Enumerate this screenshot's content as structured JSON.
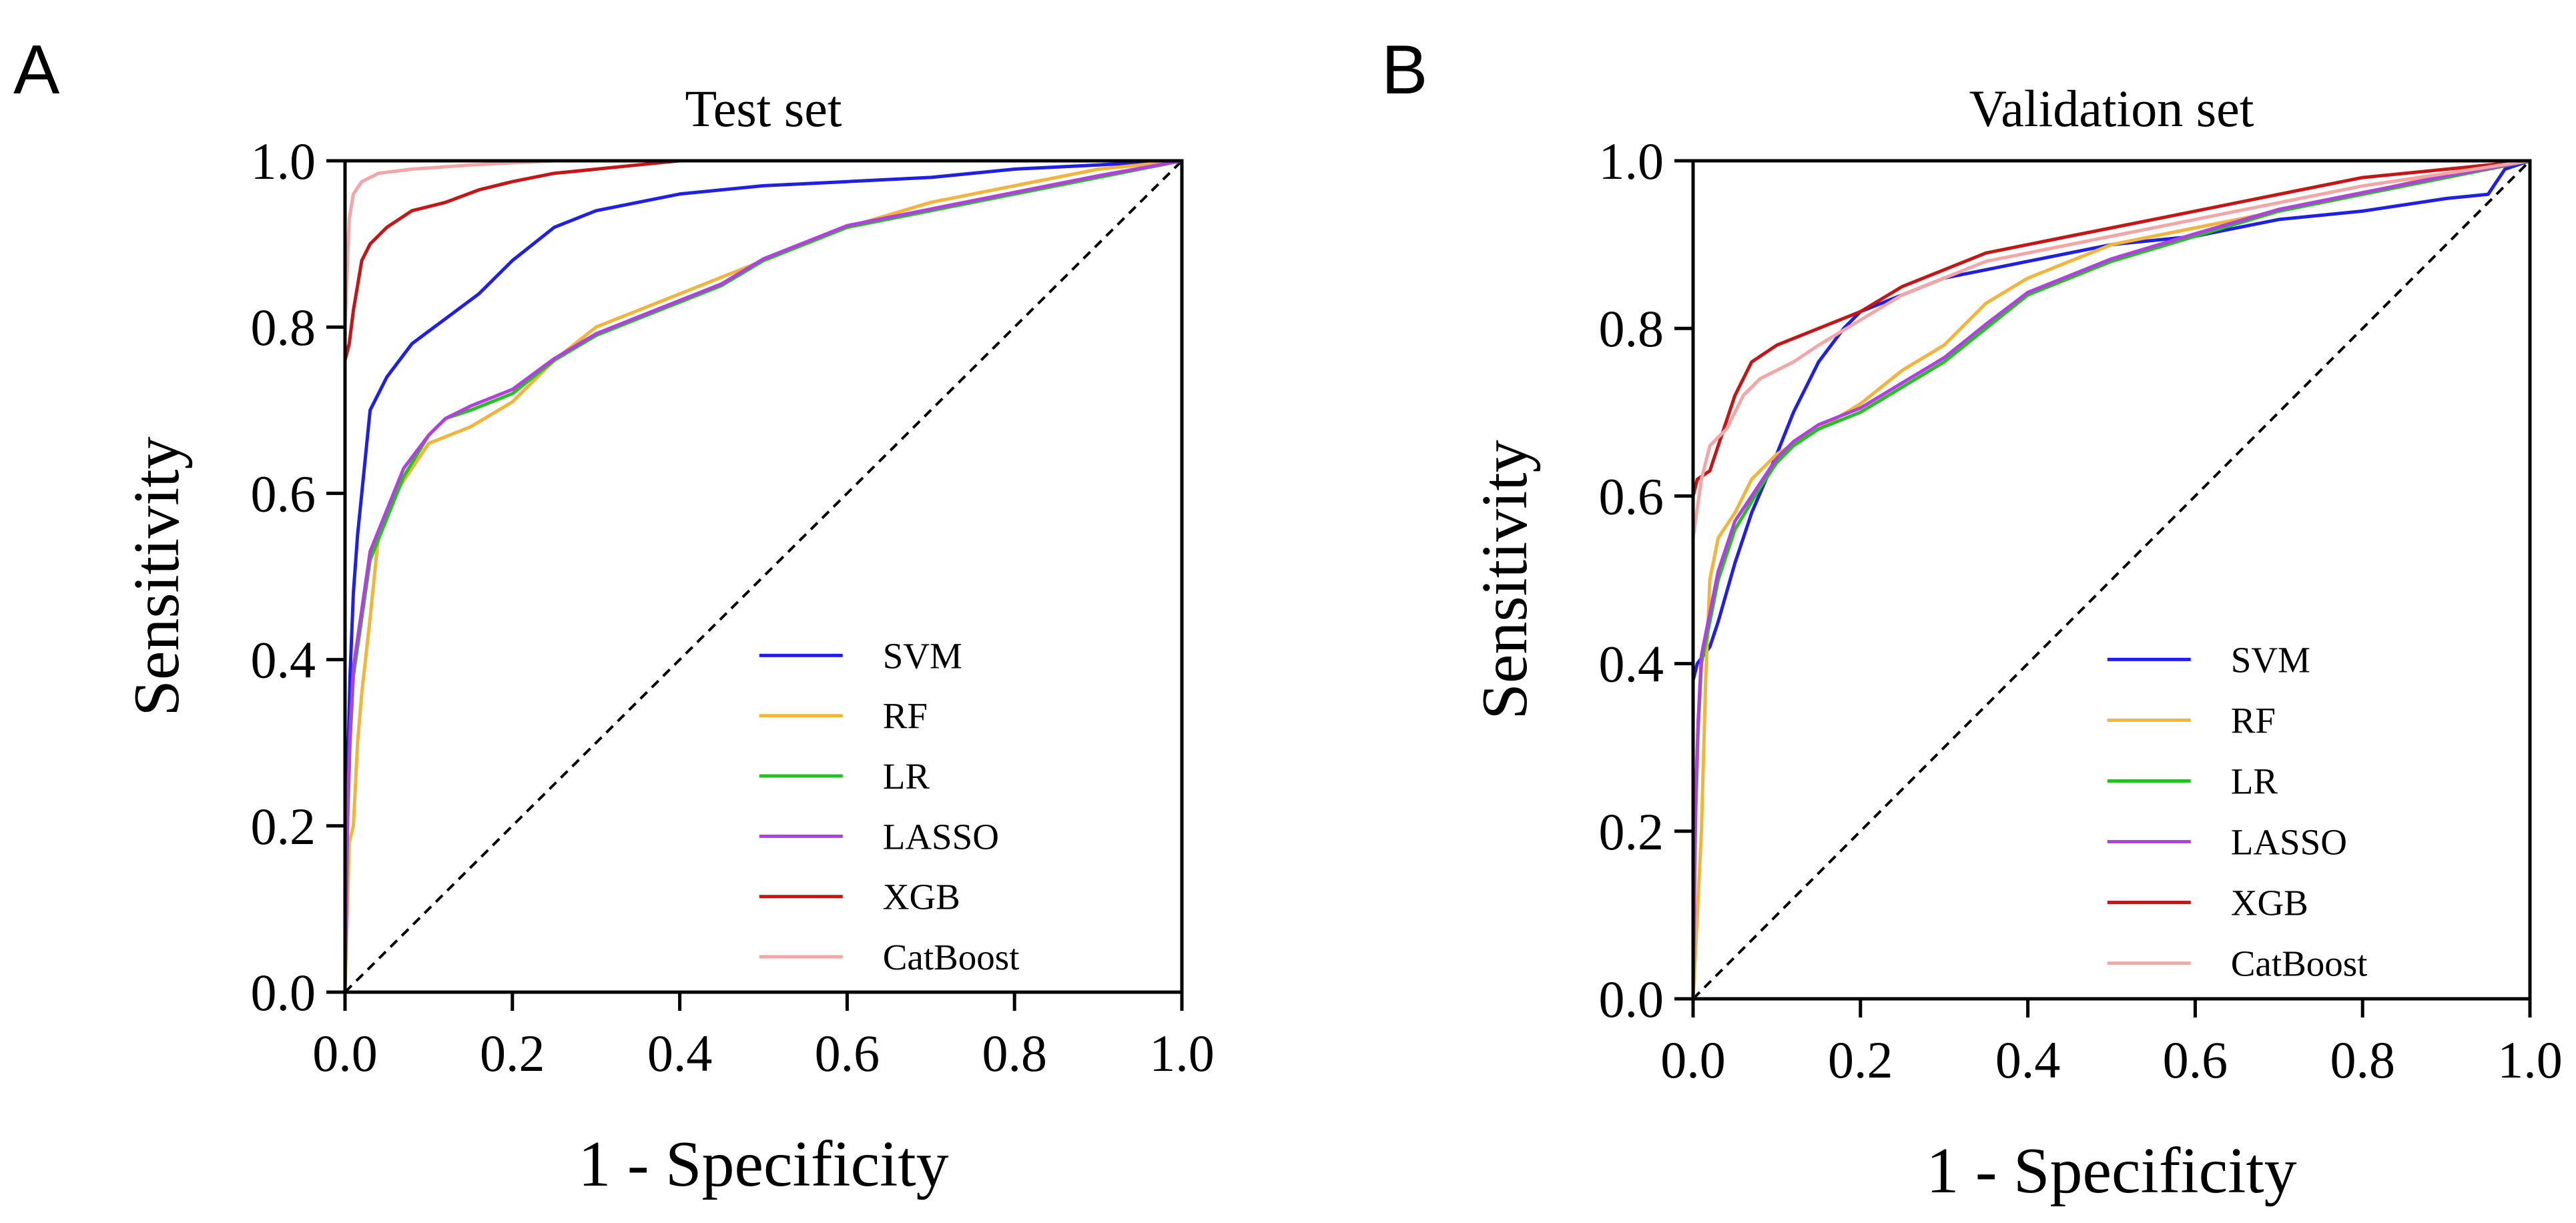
{
  "figure_labels": {
    "A": "A",
    "B": "B"
  },
  "colors": {
    "SVM": "#1f1fe8",
    "RF": "#f2b43a",
    "LR": "#22c022",
    "LASSO": "#b23fe0",
    "XGB": "#c61515",
    "CatBoost": "#f4a6a6",
    "diagonal": "#000000"
  },
  "chart_data": [
    {
      "type": "line",
      "panel": "A",
      "title": "Test set",
      "xlabel": "1 - Specificity",
      "ylabel": "Sensitivity",
      "xlim": [
        0,
        1
      ],
      "ylim": [
        0,
        1
      ],
      "x_ticks": [
        "0.0",
        "0.2",
        "0.4",
        "0.6",
        "0.8",
        "1.0"
      ],
      "y_ticks": [
        "0.0",
        "0.2",
        "0.4",
        "0.6",
        "0.8",
        "1.0"
      ],
      "legend": [
        "SVM",
        "RF",
        "LR",
        "LASSO",
        "XGB",
        "CatBoost"
      ],
      "legend_position": "bottom-right",
      "reference_line": [
        [
          0,
          0
        ],
        [
          1,
          1
        ]
      ],
      "series": [
        {
          "name": "SVM",
          "points": [
            [
              0,
              0
            ],
            [
              0,
              0.1
            ],
            [
              0.004,
              0.3
            ],
            [
              0.006,
              0.38
            ],
            [
              0.01,
              0.48
            ],
            [
              0.015,
              0.55
            ],
            [
              0.02,
              0.6
            ],
            [
              0.03,
              0.7
            ],
            [
              0.05,
              0.74
            ],
            [
              0.08,
              0.78
            ],
            [
              0.12,
              0.81
            ],
            [
              0.16,
              0.84
            ],
            [
              0.2,
              0.88
            ],
            [
              0.25,
              0.92
            ],
            [
              0.3,
              0.94
            ],
            [
              0.35,
              0.95
            ],
            [
              0.4,
              0.96
            ],
            [
              0.5,
              0.97
            ],
            [
              0.6,
              0.975
            ],
            [
              0.7,
              0.98
            ],
            [
              0.8,
              0.99
            ],
            [
              0.9,
              0.995
            ],
            [
              1,
              1
            ]
          ]
        },
        {
          "name": "RF",
          "points": [
            [
              0,
              0
            ],
            [
              0.005,
              0.18
            ],
            [
              0.01,
              0.2
            ],
            [
              0.015,
              0.3
            ],
            [
              0.02,
              0.36
            ],
            [
              0.03,
              0.45
            ],
            [
              0.04,
              0.55
            ],
            [
              0.06,
              0.6
            ],
            [
              0.08,
              0.63
            ],
            [
              0.1,
              0.66
            ],
            [
              0.15,
              0.68
            ],
            [
              0.2,
              0.71
            ],
            [
              0.25,
              0.76
            ],
            [
              0.3,
              0.8
            ],
            [
              0.35,
              0.82
            ],
            [
              0.4,
              0.84
            ],
            [
              0.45,
              0.86
            ],
            [
              0.5,
              0.88
            ],
            [
              0.55,
              0.9
            ],
            [
              0.6,
              0.92
            ],
            [
              0.7,
              0.95
            ],
            [
              0.8,
              0.97
            ],
            [
              0.9,
              0.99
            ],
            [
              1,
              1
            ]
          ]
        },
        {
          "name": "LR",
          "points": [
            [
              0,
              0
            ],
            [
              0.003,
              0.2
            ],
            [
              0.006,
              0.3
            ],
            [
              0.01,
              0.38
            ],
            [
              0.02,
              0.45
            ],
            [
              0.03,
              0.52
            ],
            [
              0.05,
              0.57
            ],
            [
              0.07,
              0.62
            ],
            [
              0.1,
              0.67
            ],
            [
              0.12,
              0.69
            ],
            [
              0.15,
              0.7
            ],
            [
              0.2,
              0.72
            ],
            [
              0.25,
              0.76
            ],
            [
              0.3,
              0.79
            ],
            [
              0.35,
              0.81
            ],
            [
              0.4,
              0.83
            ],
            [
              0.45,
              0.85
            ],
            [
              0.5,
              0.88
            ],
            [
              0.55,
              0.9
            ],
            [
              0.6,
              0.92
            ],
            [
              0.7,
              0.94
            ],
            [
              0.8,
              0.96
            ],
            [
              0.9,
              0.98
            ],
            [
              1,
              1
            ]
          ]
        },
        {
          "name": "LASSO",
          "points": [
            [
              0,
              0
            ],
            [
              0.003,
              0.22
            ],
            [
              0.006,
              0.31
            ],
            [
              0.01,
              0.39
            ],
            [
              0.02,
              0.46
            ],
            [
              0.03,
              0.53
            ],
            [
              0.05,
              0.58
            ],
            [
              0.07,
              0.63
            ],
            [
              0.1,
              0.67
            ],
            [
              0.12,
              0.69
            ],
            [
              0.15,
              0.705
            ],
            [
              0.2,
              0.725
            ],
            [
              0.25,
              0.762
            ],
            [
              0.3,
              0.792
            ],
            [
              0.35,
              0.812
            ],
            [
              0.4,
              0.832
            ],
            [
              0.45,
              0.852
            ],
            [
              0.5,
              0.882
            ],
            [
              0.55,
              0.902
            ],
            [
              0.6,
              0.922
            ],
            [
              0.7,
              0.942
            ],
            [
              0.8,
              0.962
            ],
            [
              0.9,
              0.982
            ],
            [
              1,
              1
            ]
          ]
        },
        {
          "name": "XGB",
          "points": [
            [
              0,
              0
            ],
            [
              0,
              0.76
            ],
            [
              0.005,
              0.78
            ],
            [
              0.01,
              0.82
            ],
            [
              0.02,
              0.88
            ],
            [
              0.03,
              0.9
            ],
            [
              0.05,
              0.92
            ],
            [
              0.08,
              0.94
            ],
            [
              0.12,
              0.95
            ],
            [
              0.16,
              0.965
            ],
            [
              0.2,
              0.975
            ],
            [
              0.25,
              0.985
            ],
            [
              0.3,
              0.99
            ],
            [
              0.35,
              0.995
            ],
            [
              0.4,
              1
            ],
            [
              1,
              1
            ]
          ]
        },
        {
          "name": "CatBoost",
          "points": [
            [
              0,
              0
            ],
            [
              0,
              0.8
            ],
            [
              0.003,
              0.88
            ],
            [
              0.005,
              0.93
            ],
            [
              0.01,
              0.96
            ],
            [
              0.02,
              0.975
            ],
            [
              0.04,
              0.985
            ],
            [
              0.08,
              0.99
            ],
            [
              0.15,
              0.995
            ],
            [
              0.25,
              1
            ],
            [
              1,
              1
            ]
          ]
        }
      ]
    },
    {
      "type": "line",
      "panel": "B",
      "title": "Validation set",
      "xlabel": "1 - Specificity",
      "ylabel": "Sensitivity",
      "xlim": [
        0,
        1
      ],
      "ylim": [
        0,
        1
      ],
      "x_ticks": [
        "0.0",
        "0.2",
        "0.4",
        "0.6",
        "0.8",
        "1.0"
      ],
      "y_ticks": [
        "0.0",
        "0.2",
        "0.4",
        "0.6",
        "0.8",
        "1.0"
      ],
      "legend": [
        "SVM",
        "RF",
        "LR",
        "LASSO",
        "XGB",
        "CatBoost"
      ],
      "legend_position": "bottom-right",
      "reference_line": [
        [
          0,
          0
        ],
        [
          1,
          1
        ]
      ],
      "series": [
        {
          "name": "SVM",
          "points": [
            [
              0,
              0
            ],
            [
              0,
              0.38
            ],
            [
              0.005,
              0.4
            ],
            [
              0.02,
              0.42
            ],
            [
              0.03,
              0.45
            ],
            [
              0.05,
              0.52
            ],
            [
              0.07,
              0.58
            ],
            [
              0.1,
              0.65
            ],
            [
              0.12,
              0.7
            ],
            [
              0.15,
              0.76
            ],
            [
              0.18,
              0.8
            ],
            [
              0.2,
              0.82
            ],
            [
              0.25,
              0.84
            ],
            [
              0.3,
              0.86
            ],
            [
              0.35,
              0.87
            ],
            [
              0.4,
              0.88
            ],
            [
              0.5,
              0.9
            ],
            [
              0.6,
              0.91
            ],
            [
              0.7,
              0.93
            ],
            [
              0.8,
              0.94
            ],
            [
              0.9,
              0.955
            ],
            [
              0.95,
              0.96
            ],
            [
              0.97,
              0.99
            ],
            [
              1,
              1
            ]
          ]
        },
        {
          "name": "RF",
          "points": [
            [
              0,
              0
            ],
            [
              0.005,
              0.1
            ],
            [
              0.01,
              0.2
            ],
            [
              0.015,
              0.38
            ],
            [
              0.02,
              0.5
            ],
            [
              0.03,
              0.55
            ],
            [
              0.05,
              0.58
            ],
            [
              0.07,
              0.62
            ],
            [
              0.1,
              0.65
            ],
            [
              0.15,
              0.68
            ],
            [
              0.2,
              0.71
            ],
            [
              0.25,
              0.75
            ],
            [
              0.3,
              0.78
            ],
            [
              0.35,
              0.83
            ],
            [
              0.4,
              0.86
            ],
            [
              0.45,
              0.88
            ],
            [
              0.5,
              0.9
            ],
            [
              0.6,
              0.92
            ],
            [
              0.7,
              0.94
            ],
            [
              0.8,
              0.96
            ],
            [
              0.9,
              0.985
            ],
            [
              1,
              1
            ]
          ]
        },
        {
          "name": "LR",
          "points": [
            [
              0,
              0
            ],
            [
              0.003,
              0.22
            ],
            [
              0.006,
              0.32
            ],
            [
              0.01,
              0.4
            ],
            [
              0.02,
              0.45
            ],
            [
              0.03,
              0.5
            ],
            [
              0.05,
              0.56
            ],
            [
              0.08,
              0.61
            ],
            [
              0.1,
              0.64
            ],
            [
              0.12,
              0.66
            ],
            [
              0.15,
              0.68
            ],
            [
              0.2,
              0.7
            ],
            [
              0.25,
              0.73
            ],
            [
              0.3,
              0.76
            ],
            [
              0.35,
              0.8
            ],
            [
              0.4,
              0.84
            ],
            [
              0.45,
              0.86
            ],
            [
              0.5,
              0.88
            ],
            [
              0.6,
              0.91
            ],
            [
              0.7,
              0.94
            ],
            [
              0.8,
              0.96
            ],
            [
              0.9,
              0.98
            ],
            [
              1,
              1
            ]
          ]
        },
        {
          "name": "LASSO",
          "points": [
            [
              0,
              0
            ],
            [
              0.003,
              0.24
            ],
            [
              0.006,
              0.33
            ],
            [
              0.01,
              0.41
            ],
            [
              0.02,
              0.46
            ],
            [
              0.03,
              0.51
            ],
            [
              0.05,
              0.57
            ],
            [
              0.08,
              0.615
            ],
            [
              0.1,
              0.645
            ],
            [
              0.12,
              0.665
            ],
            [
              0.15,
              0.685
            ],
            [
              0.2,
              0.705
            ],
            [
              0.25,
              0.735
            ],
            [
              0.3,
              0.765
            ],
            [
              0.35,
              0.805
            ],
            [
              0.4,
              0.843
            ],
            [
              0.45,
              0.863
            ],
            [
              0.5,
              0.883
            ],
            [
              0.6,
              0.913
            ],
            [
              0.7,
              0.942
            ],
            [
              0.8,
              0.962
            ],
            [
              0.9,
              0.982
            ],
            [
              1,
              1
            ]
          ]
        },
        {
          "name": "XGB",
          "points": [
            [
              0,
              0
            ],
            [
              0,
              0.6
            ],
            [
              0.005,
              0.62
            ],
            [
              0.02,
              0.63
            ],
            [
              0.03,
              0.66
            ],
            [
              0.05,
              0.72
            ],
            [
              0.07,
              0.76
            ],
            [
              0.1,
              0.78
            ],
            [
              0.15,
              0.8
            ],
            [
              0.2,
              0.82
            ],
            [
              0.25,
              0.85
            ],
            [
              0.3,
              0.87
            ],
            [
              0.35,
              0.89
            ],
            [
              0.4,
              0.9
            ],
            [
              0.45,
              0.91
            ],
            [
              0.5,
              0.92
            ],
            [
              0.6,
              0.94
            ],
            [
              0.7,
              0.96
            ],
            [
              0.8,
              0.98
            ],
            [
              0.9,
              0.99
            ],
            [
              1,
              1
            ]
          ]
        },
        {
          "name": "CatBoost",
          "points": [
            [
              0,
              0
            ],
            [
              0,
              0.55
            ],
            [
              0.01,
              0.62
            ],
            [
              0.02,
              0.66
            ],
            [
              0.04,
              0.68
            ],
            [
              0.06,
              0.72
            ],
            [
              0.08,
              0.74
            ],
            [
              0.1,
              0.75
            ],
            [
              0.12,
              0.76
            ],
            [
              0.15,
              0.78
            ],
            [
              0.2,
              0.81
            ],
            [
              0.25,
              0.84
            ],
            [
              0.3,
              0.86
            ],
            [
              0.35,
              0.88
            ],
            [
              0.4,
              0.89
            ],
            [
              0.5,
              0.91
            ],
            [
              0.6,
              0.93
            ],
            [
              0.7,
              0.95
            ],
            [
              0.8,
              0.97
            ],
            [
              0.9,
              0.985
            ],
            [
              1,
              1
            ]
          ]
        }
      ]
    }
  ]
}
